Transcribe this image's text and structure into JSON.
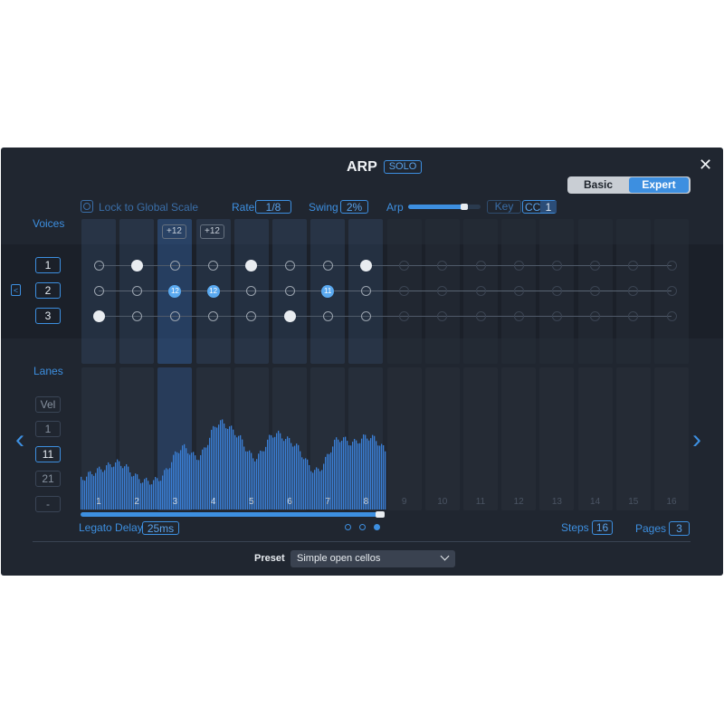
{
  "header": {
    "title": "ARP",
    "solo_badge": "SOLO",
    "close_icon": "close-icon"
  },
  "mode_toggle": {
    "options": [
      "Basic",
      "Expert"
    ],
    "selected": "Expert"
  },
  "controls": {
    "lock_label": "Lock to Global Scale",
    "rate_label": "Rate",
    "rate_value": "1/8",
    "swing_label": "Swing",
    "swing_value": "2%",
    "arp_label": "Arp",
    "arp_level": 0.78,
    "key_label": "Key",
    "cc_label": "CC",
    "cc_value": "1"
  },
  "voices": {
    "label": "Voices",
    "rows": [
      "1",
      "2",
      "3"
    ],
    "offsets": [
      "+12",
      "+12"
    ]
  },
  "lanes": {
    "label": "Lanes",
    "items": [
      "Vel",
      "1",
      "11",
      "21",
      "-"
    ],
    "selected": "11"
  },
  "grid": {
    "step_labels": [
      "1",
      "2",
      "3",
      "4",
      "5",
      "6",
      "7",
      "8",
      "9",
      "10",
      "11",
      "12",
      "13",
      "14",
      "15",
      "16"
    ],
    "active_steps": 8,
    "note_badges": [
      "12",
      "12",
      "11"
    ]
  },
  "footer": {
    "legato_label": "Legato Delay",
    "legato_value": "25ms",
    "steps_label": "Steps",
    "steps_value": "16",
    "pages_label": "Pages",
    "pages_value": "3",
    "preset_label": "Preset",
    "preset_value": "Simple open cellos"
  },
  "colors": {
    "accent": "#3d8fe0",
    "background": "#202630",
    "bars": "#3a7fd6"
  }
}
